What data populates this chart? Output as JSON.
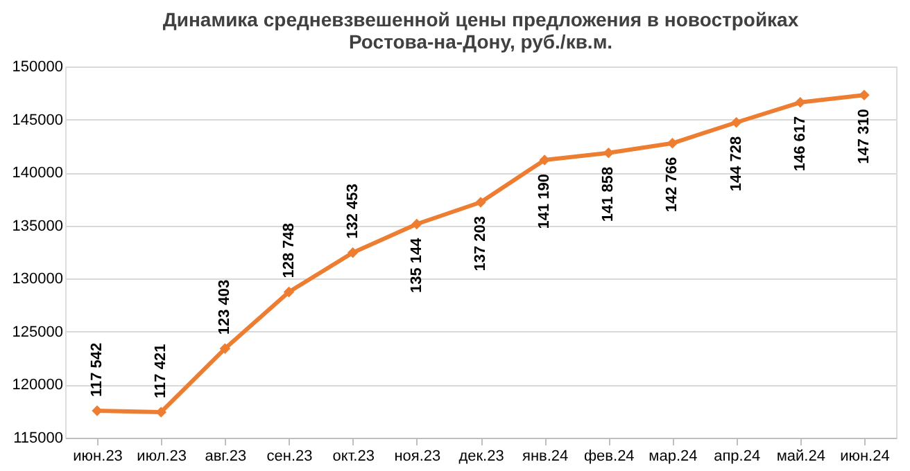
{
  "chart_data": {
    "type": "line",
    "title": [
      "Динамика средневзвешенной цены предложения в новостройках",
      "Ростова-на-Дону, руб./кв.м."
    ],
    "categories": [
      "июн.23",
      "июл.23",
      "авг.23",
      "сен.23",
      "окт.23",
      "ноя.23",
      "дек.23",
      "янв.24",
      "фев.24",
      "мар.24",
      "апр.24",
      "май.24",
      "июн.24"
    ],
    "series": [
      {
        "color": "#ed7d31",
        "values": [
          117542,
          117421,
          123403,
          128748,
          132453,
          135144,
          137203,
          141190,
          141858,
          142766,
          144728,
          146617,
          147310
        ],
        "value_labels": [
          "117 542",
          "117 421",
          "123 403",
          "128 748",
          "132 453",
          "135 144",
          "137 203",
          "141 190",
          "141 858",
          "142 766",
          "144 728",
          "146 617",
          "147 310"
        ]
      }
    ],
    "ylim": [
      115000,
      150000
    ],
    "yticks": [
      115000,
      120000,
      125000,
      130000,
      135000,
      140000,
      145000,
      150000
    ],
    "grid": "y",
    "marker": "diamond",
    "line_style": "solid"
  }
}
